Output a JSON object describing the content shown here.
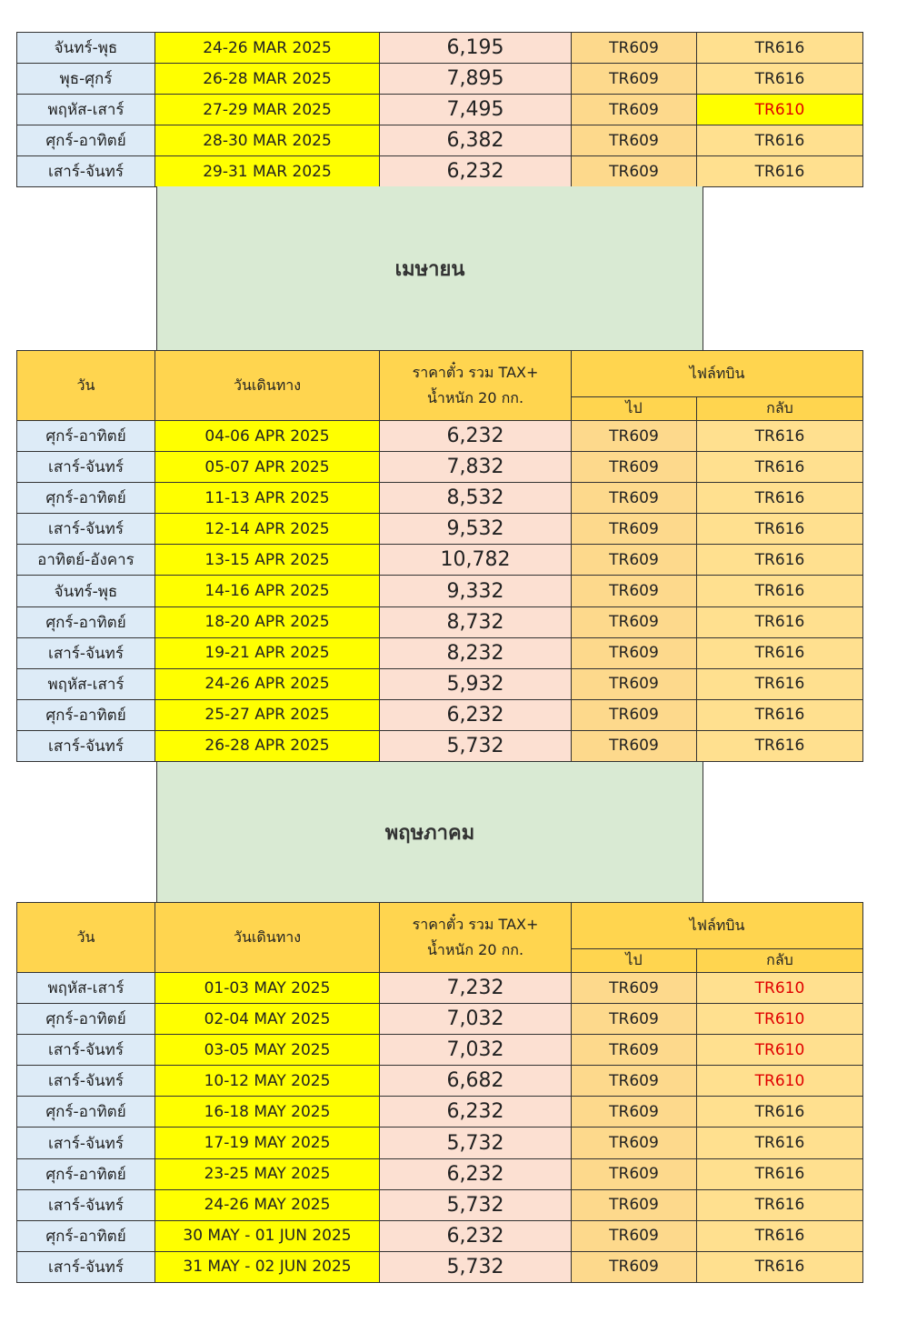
{
  "header": {
    "day": "วัน",
    "date": "วันเดินทาง",
    "price_line1": "ราคาตั๋ว รวม TAX+",
    "price_line2": "น้ำหนัก 20 กก.",
    "flight": "ไฟล์ทบิน",
    "outbound": "ไป",
    "return": "กลับ"
  },
  "colors": {
    "day": "#ddebf7",
    "date": "#ffff00",
    "price": "#fce0d2",
    "flight": "#fdd98c",
    "header": "#ffd54f",
    "banner": "#d9ead3",
    "alt_flight": "#e00000"
  },
  "sections": [
    {
      "month": "",
      "rows": [
        [
          "จันทร์-พุธ",
          "24-26 MAR 2025",
          "6,195",
          "TR609",
          "TR616"
        ],
        [
          "พุธ-ศุกร์",
          "26-28 MAR 2025",
          "7,895",
          "TR609",
          "TR616"
        ],
        [
          "พฤหัส-เสาร์",
          "27-29 MAR 2025",
          "7,495",
          "TR609",
          "TR610"
        ],
        [
          "ศุกร์-อาทิตย์",
          "28-30 MAR 2025",
          "6,382",
          "TR609",
          "TR616"
        ],
        [
          "เสาร์-จันทร์",
          "29-31 MAR 2025",
          "6,232",
          "TR609",
          "TR616"
        ]
      ]
    },
    {
      "month": "เมษายน",
      "rows": [
        [
          "ศุกร์-อาทิตย์",
          "04-06 APR 2025",
          "6,232",
          "TR609",
          "TR616"
        ],
        [
          "เสาร์-จันทร์",
          "05-07 APR 2025",
          "7,832",
          "TR609",
          "TR616"
        ],
        [
          "ศุกร์-อาทิตย์",
          "11-13 APR 2025",
          "8,532",
          "TR609",
          "TR616"
        ],
        [
          "เสาร์-จันทร์",
          "12-14 APR 2025",
          "9,532",
          "TR609",
          "TR616"
        ],
        [
          "อาทิตย์-อังคาร",
          "13-15 APR 2025",
          "10,782",
          "TR609",
          "TR616"
        ],
        [
          "จันทร์-พุธ",
          "14-16 APR 2025",
          "9,332",
          "TR609",
          "TR616"
        ],
        [
          "ศุกร์-อาทิตย์",
          "18-20 APR 2025",
          "8,732",
          "TR609",
          "TR616"
        ],
        [
          "เสาร์-จันทร์",
          "19-21 APR 2025",
          "8,232",
          "TR609",
          "TR616"
        ],
        [
          "พฤหัส-เสาร์",
          "24-26 APR 2025",
          "5,932",
          "TR609",
          "TR616"
        ],
        [
          "ศุกร์-อาทิตย์",
          "25-27 APR 2025",
          "6,232",
          "TR609",
          "TR616"
        ],
        [
          "เสาร์-จันทร์",
          "26-28 APR 2025",
          "5,732",
          "TR609",
          "TR616"
        ]
      ]
    },
    {
      "month": "พฤษภาคม",
      "rows": [
        [
          "พฤหัส-เสาร์",
          "01-03 MAY 2025",
          "7,232",
          "TR609",
          "TR610"
        ],
        [
          "ศุกร์-อาทิตย์",
          "02-04 MAY 2025",
          "7,032",
          "TR609",
          "TR610"
        ],
        [
          "เสาร์-จันทร์",
          "03-05 MAY 2025",
          "7,032",
          "TR609",
          "TR610"
        ],
        [
          "เสาร์-จันทร์",
          "10-12 MAY 2025",
          "6,682",
          "TR609",
          "TR610"
        ],
        [
          "ศุกร์-อาทิตย์",
          "16-18 MAY 2025",
          "6,232",
          "TR609",
          "TR616"
        ],
        [
          "เสาร์-จันทร์",
          "17-19 MAY 2025",
          "5,732",
          "TR609",
          "TR616"
        ],
        [
          "ศุกร์-อาทิตย์",
          "23-25 MAY 2025",
          "6,232",
          "TR609",
          "TR616"
        ],
        [
          "เสาร์-จันทร์",
          "24-26 MAY 2025",
          "5,732",
          "TR609",
          "TR616"
        ],
        [
          "ศุกร์-อาทิตย์",
          "30 MAY - 01 JUN 2025",
          "6,232",
          "TR609",
          "TR616"
        ],
        [
          "เสาร์-จันทร์",
          "31 MAY - 02 JUN 2025",
          "5,732",
          "TR609",
          "TR616"
        ]
      ]
    }
  ]
}
